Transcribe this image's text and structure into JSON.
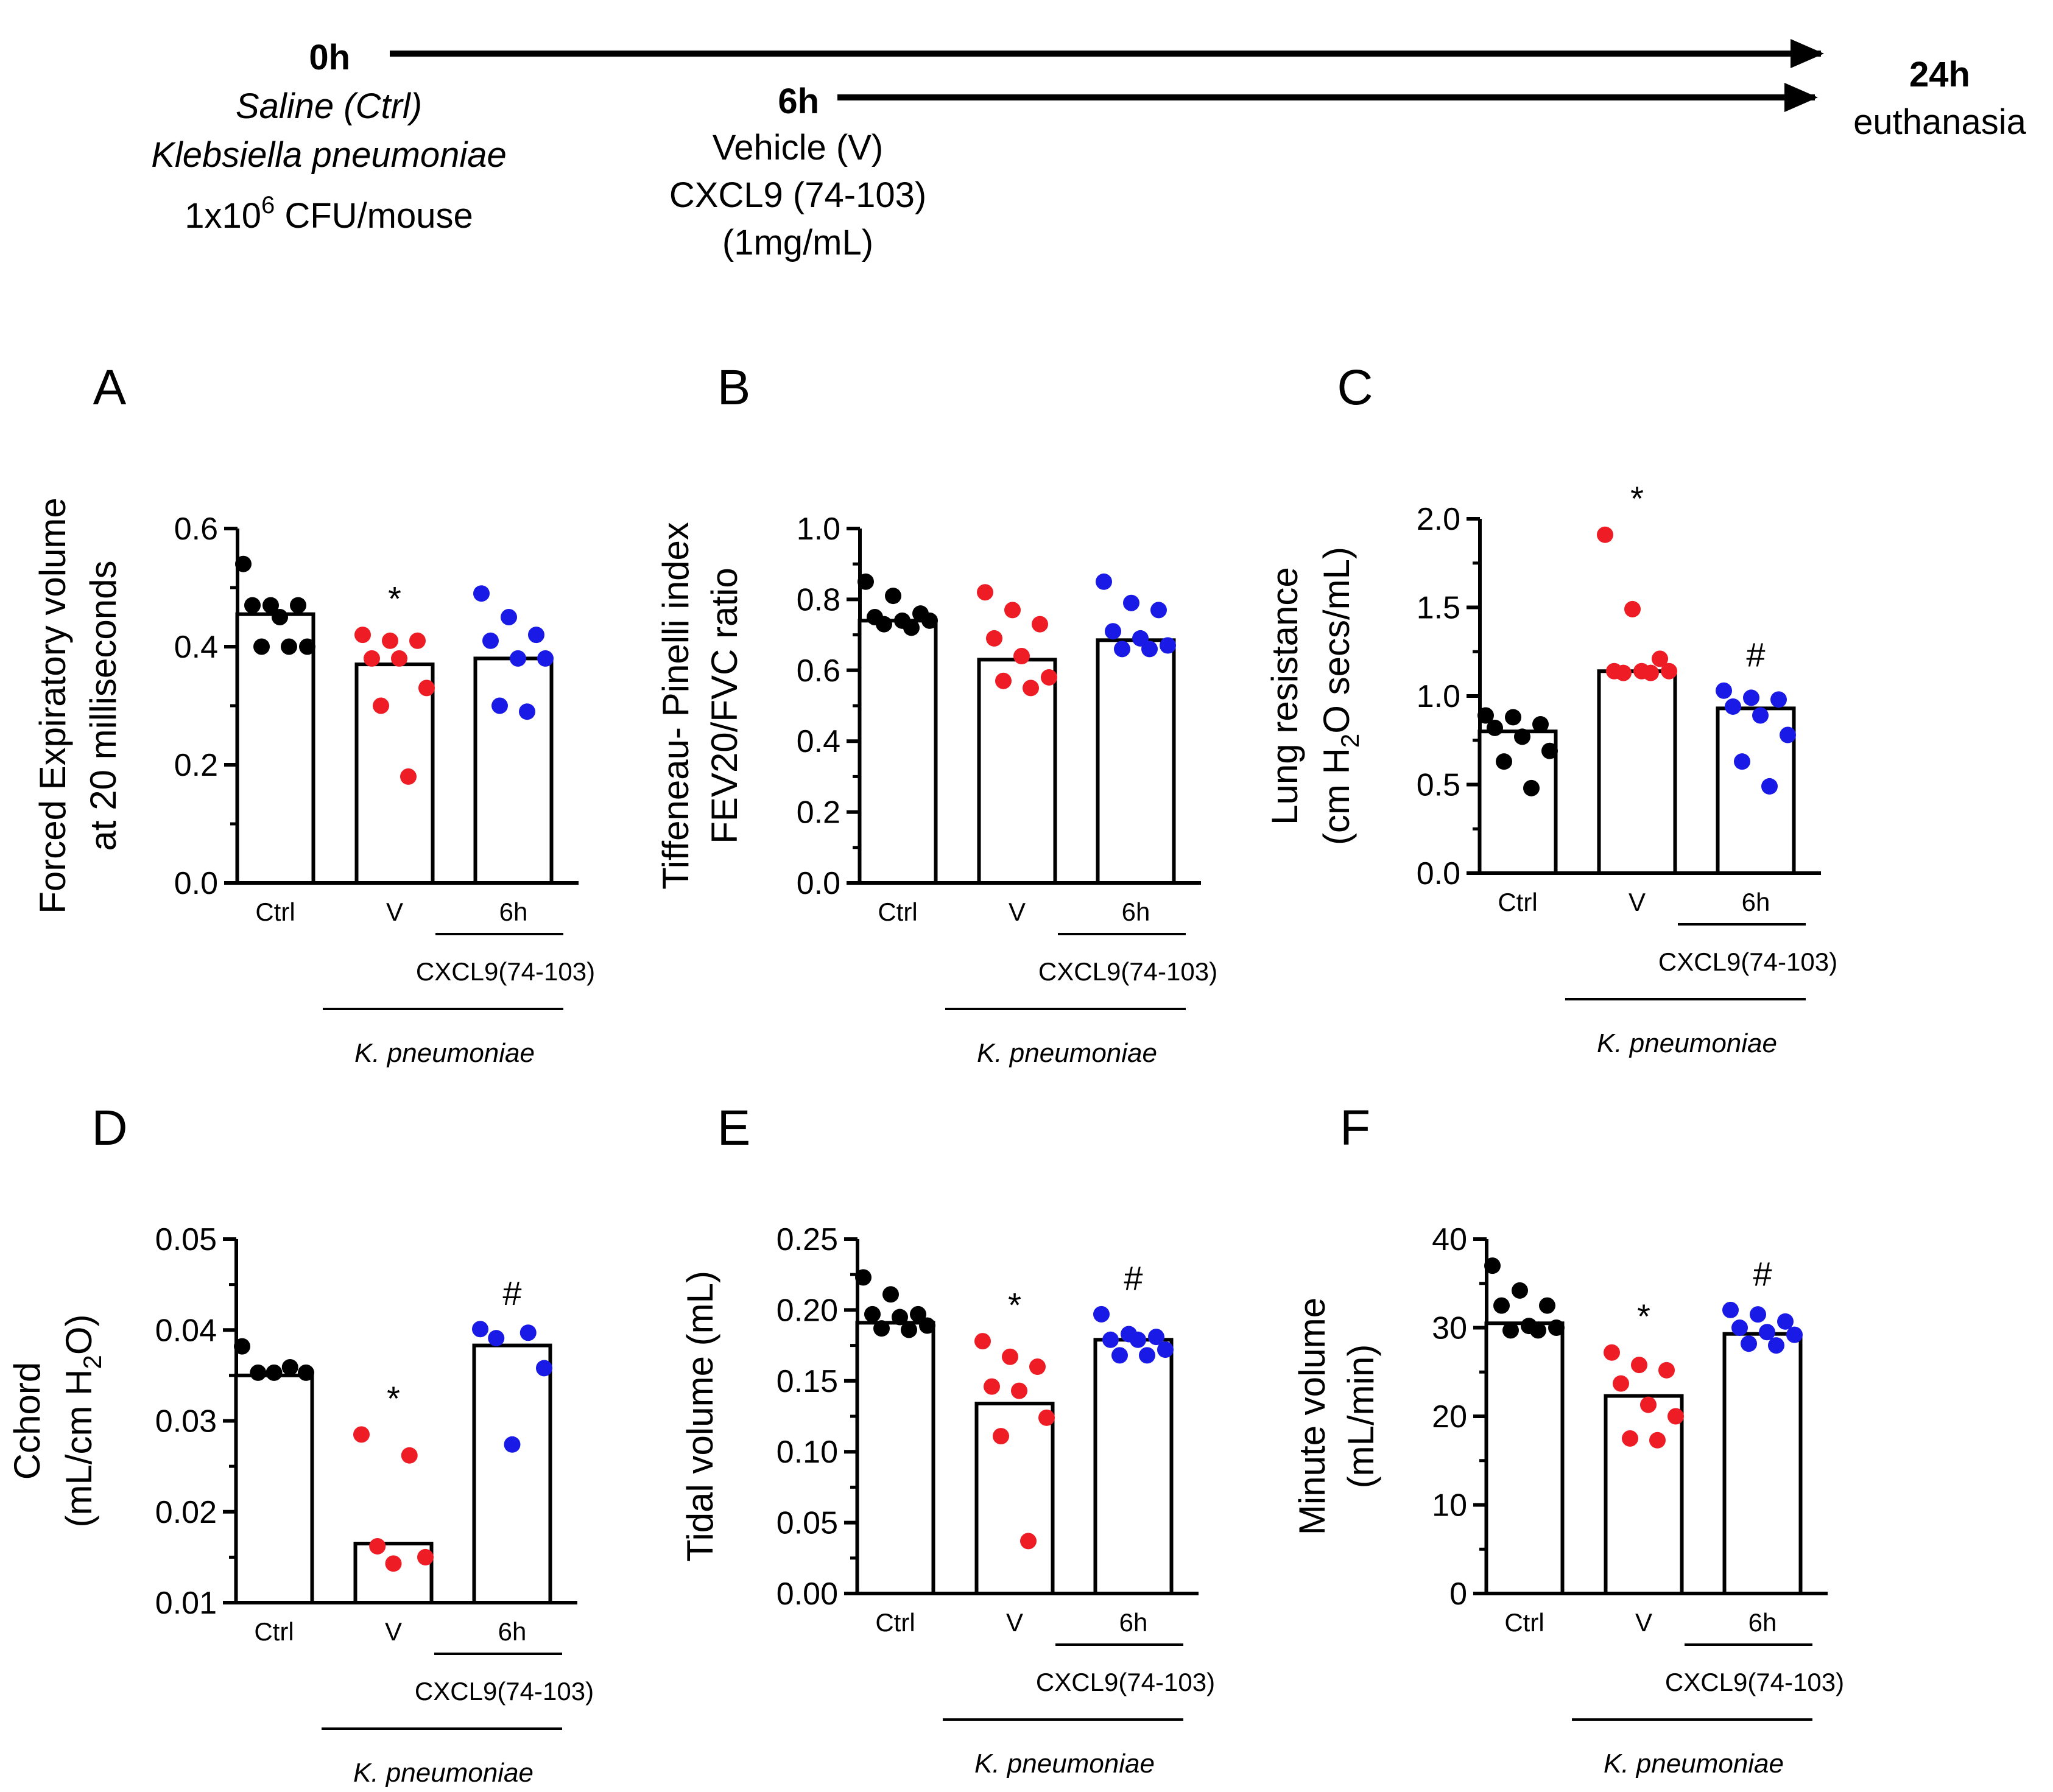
{
  "timeline": {
    "t0": "0h",
    "t0_lines": [
      "Saline (Ctrl)",
      "Klebsiella pneumoniae"
    ],
    "dose_prefix": "1x10",
    "dose_exp": "6",
    "dose_suffix": " CFU/mouse",
    "t6": "6h",
    "t6_lines": [
      "Vehicle (V)",
      "CXCL9 (74-103)",
      "(1mg/mL)"
    ],
    "t24": "24h",
    "t24_line": "euthanasia"
  },
  "group_labels": {
    "ctrl": "Ctrl",
    "v": "V",
    "h6": "6h",
    "treatment": "CXCL9(74-103)",
    "infection": "K. pneumoniae"
  },
  "colors": {
    "ctrl": "#000000",
    "v": "#ee1c25",
    "h6": "#1a1ae6"
  },
  "chart_data": [
    {
      "type": "bar",
      "panel": "A",
      "ylabel": [
        "Forced Expiratory volume",
        "at 20 milliseconds"
      ],
      "ylim": [
        0,
        0.6
      ],
      "yticks": [
        "0.0",
        "0.2",
        "0.4",
        "0.6"
      ],
      "categories": [
        "Ctrl",
        "V",
        "6h"
      ],
      "means": [
        0.455,
        0.37,
        0.38
      ],
      "points": [
        [
          0.54,
          0.47,
          0.47,
          0.47,
          0.45,
          0.4,
          0.4,
          0.4
        ],
        [
          0.42,
          0.41,
          0.41,
          0.38,
          0.38,
          0.33,
          0.3,
          0.18
        ],
        [
          0.49,
          0.45,
          0.42,
          0.41,
          0.38,
          0.38,
          0.3,
          0.29
        ]
      ],
      "annotations": [
        "",
        "*",
        ""
      ]
    },
    {
      "type": "bar",
      "panel": "B",
      "ylabel": [
        "Tiffeneau- Pinelli index",
        "FEV20/FVC ratio"
      ],
      "ylim": [
        0,
        1.0
      ],
      "yticks": [
        "0.0",
        "0.2",
        "0.4",
        "0.6",
        "0.8",
        "1.0"
      ],
      "categories": [
        "Ctrl",
        "V",
        "6h"
      ],
      "means": [
        0.74,
        0.63,
        0.685
      ],
      "points": [
        [
          0.85,
          0.81,
          0.76,
          0.75,
          0.74,
          0.74,
          0.73,
          0.72
        ],
        [
          0.82,
          0.77,
          0.73,
          0.69,
          0.64,
          0.58,
          0.57,
          0.55
        ],
        [
          0.85,
          0.79,
          0.77,
          0.71,
          0.69,
          0.67,
          0.66,
          0.66
        ]
      ],
      "annotations": [
        "",
        "",
        ""
      ]
    },
    {
      "type": "bar",
      "panel": "C",
      "ylabel": [
        "Lung resistance",
        "(cm H|2|O secs/mL)"
      ],
      "ylim": [
        0,
        2.0
      ],
      "yticks": [
        "0.0",
        "0.5",
        "1.0",
        "1.5",
        "2.0"
      ],
      "categories": [
        "Ctrl",
        "V",
        "6h"
      ],
      "means": [
        0.8,
        1.14,
        0.93
      ],
      "points": [
        [
          0.89,
          0.88,
          0.84,
          0.82,
          0.77,
          0.69,
          0.63,
          0.48
        ],
        [
          1.91,
          1.49,
          1.21,
          1.14,
          1.14,
          1.14,
          1.13,
          1.13
        ],
        [
          1.03,
          0.99,
          0.98,
          0.94,
          0.89,
          0.78,
          0.63,
          0.49
        ]
      ],
      "annotations": [
        "",
        "*",
        "#"
      ]
    },
    {
      "type": "bar",
      "panel": "D",
      "ylabel": [
        "Cchord",
        "(mL/cm H|2|O)"
      ],
      "ylim": [
        0.01,
        0.05
      ],
      "yticks": [
        "0.01",
        "0.02",
        "0.03",
        "0.04",
        "0.05"
      ],
      "categories": [
        "Ctrl",
        "V",
        "6h"
      ],
      "means": [
        0.035,
        0.0165,
        0.0383
      ],
      "points": [
        [
          0.0382,
          0.0359,
          0.0353,
          0.0353,
          0.0353
        ],
        [
          0.0285,
          0.0262,
          0.0162,
          0.015,
          0.0143
        ],
        [
          0.0401,
          0.0397,
          0.0391,
          0.0358,
          0.0274
        ]
      ],
      "annotations": [
        "",
        "*",
        "#"
      ]
    },
    {
      "type": "bar",
      "panel": "E",
      "ylabel": [
        "Tidal volume (mL)"
      ],
      "ylim": [
        0,
        0.25
      ],
      "yticks": [
        "0.00",
        "0.05",
        "0.10",
        "0.15",
        "0.20",
        "0.25"
      ],
      "categories": [
        "Ctrl",
        "V",
        "6h"
      ],
      "means": [
        0.191,
        0.134,
        0.179
      ],
      "points": [
        [
          0.223,
          0.211,
          0.197,
          0.197,
          0.195,
          0.189,
          0.187,
          0.186
        ],
        [
          0.178,
          0.167,
          0.16,
          0.146,
          0.143,
          0.124,
          0.111,
          0.037
        ],
        [
          0.197,
          0.183,
          0.181,
          0.179,
          0.179,
          0.172,
          0.168,
          0.168
        ]
      ],
      "annotations": [
        "",
        "*",
        "#"
      ]
    },
    {
      "type": "bar",
      "panel": "F",
      "ylabel": [
        "Minute volume",
        "(mL/min)"
      ],
      "ylim": [
        0,
        40
      ],
      "yticks": [
        "0",
        "10",
        "20",
        "30",
        "40"
      ],
      "categories": [
        "Ctrl",
        "V",
        "6h"
      ],
      "means": [
        30.5,
        22.3,
        29.3
      ],
      "points": [
        [
          37.0,
          34.2,
          32.5,
          32.5,
          30.2,
          30.0,
          29.7,
          29.7
        ],
        [
          27.2,
          25.8,
          25.2,
          23.7,
          21.3,
          20.0,
          17.5,
          17.3
        ],
        [
          32.0,
          31.5,
          30.7,
          30.0,
          29.5,
          29.2,
          28.2,
          28.0
        ]
      ],
      "annotations": [
        "",
        "*",
        "#"
      ]
    }
  ]
}
